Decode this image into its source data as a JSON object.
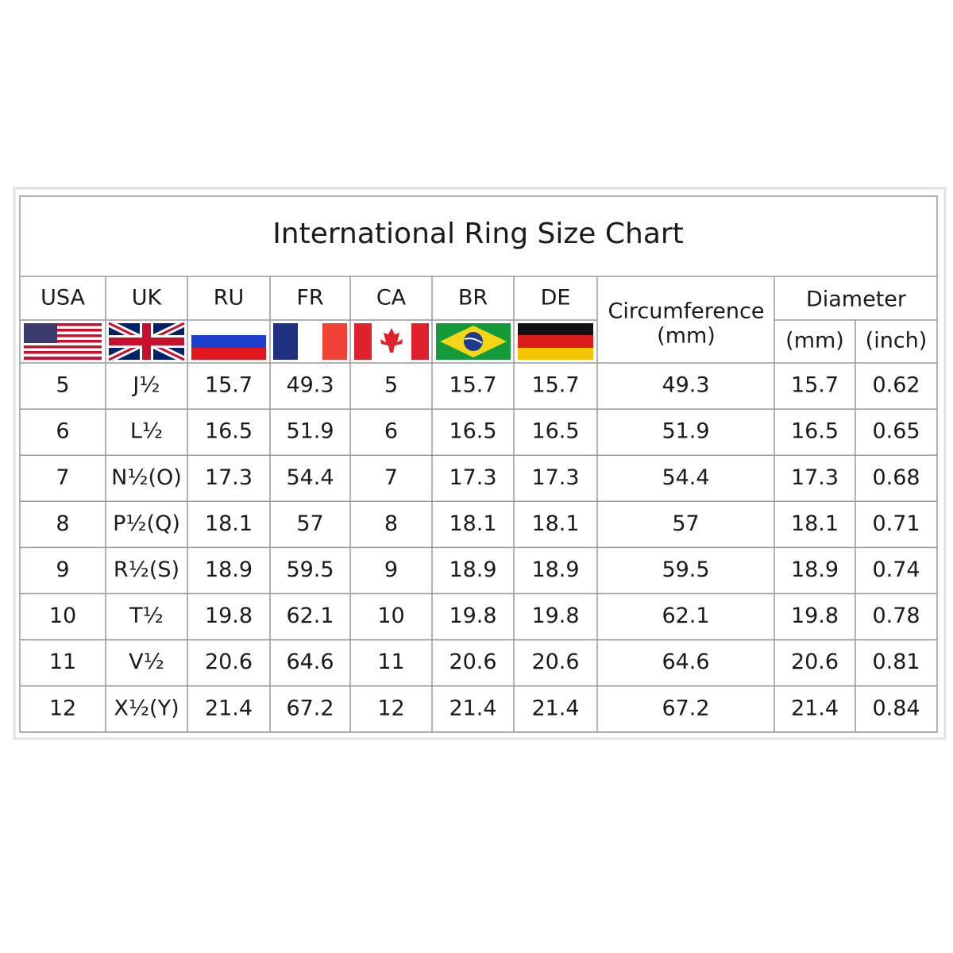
{
  "table": {
    "title": "International Ring Size Chart",
    "country_headers": [
      "USA",
      "UK",
      "RU",
      "FR",
      "CA",
      "BR",
      "DE"
    ],
    "circumference_header": {
      "label": "Circumference",
      "unit": "(mm)"
    },
    "diameter_header": {
      "label": "Diameter",
      "units": [
        "(mm)",
        "(inch)"
      ]
    },
    "rows": [
      [
        "5",
        "J½",
        "15.7",
        "49.3",
        "5",
        "15.7",
        "15.7",
        "49.3",
        "15.7",
        "0.62"
      ],
      [
        "6",
        "L½",
        "16.5",
        "51.9",
        "6",
        "16.5",
        "16.5",
        "51.9",
        "16.5",
        "0.65"
      ],
      [
        "7",
        "N½(O)",
        "17.3",
        "54.4",
        "7",
        "17.3",
        "17.3",
        "54.4",
        "17.3",
        "0.68"
      ],
      [
        "8",
        "P½(Q)",
        "18.1",
        "57",
        "8",
        "18.1",
        "18.1",
        "57",
        "18.1",
        "0.71"
      ],
      [
        "9",
        "R½(S)",
        "18.9",
        "59.5",
        "9",
        "18.9",
        "18.9",
        "59.5",
        "18.9",
        "0.74"
      ],
      [
        "10",
        "T½",
        "19.8",
        "62.1",
        "10",
        "19.8",
        "19.8",
        "62.1",
        "19.8",
        "0.78"
      ],
      [
        "11",
        "V½",
        "20.6",
        "64.6",
        "11",
        "20.6",
        "20.6",
        "64.6",
        "20.6",
        "0.81"
      ],
      [
        "12",
        "X½(Y)",
        "21.4",
        "67.2",
        "12",
        "21.4",
        "21.4",
        "67.2",
        "21.4",
        "0.84"
      ]
    ]
  }
}
